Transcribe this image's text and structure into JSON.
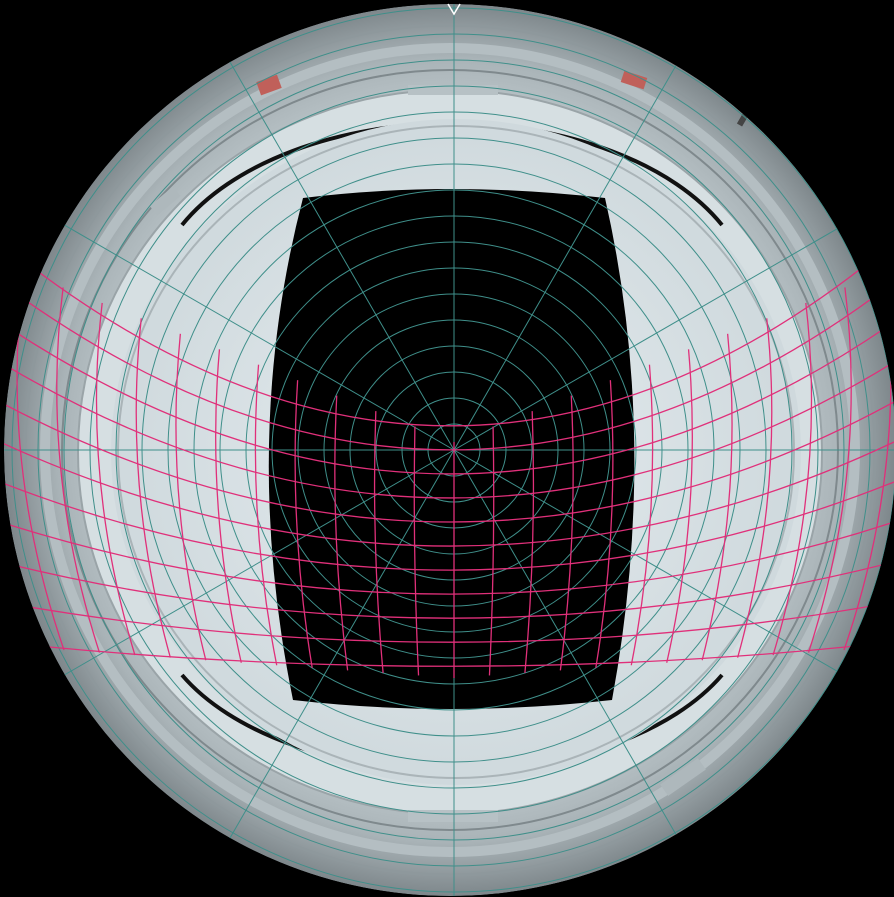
{
  "image": {
    "subject": "fisheye-view",
    "background_color": "#000000",
    "colors": {
      "vessel_outer": "#9ea8ac",
      "vessel_mid": "#c8d2d6",
      "vessel_inner": "#d8e1e4",
      "opening": "#000000",
      "polar_grid": "#3f8f8a",
      "projection_grid": "#e0307a",
      "dark_ring": "#111111",
      "marker_red": "#c0605a",
      "top_marker": "#ffffff"
    },
    "polar_grid": {
      "rings": 17,
      "spokes": 12
    },
    "projection_grid": {
      "horizontal_lines": 11,
      "vertical_lines": 23
    }
  }
}
